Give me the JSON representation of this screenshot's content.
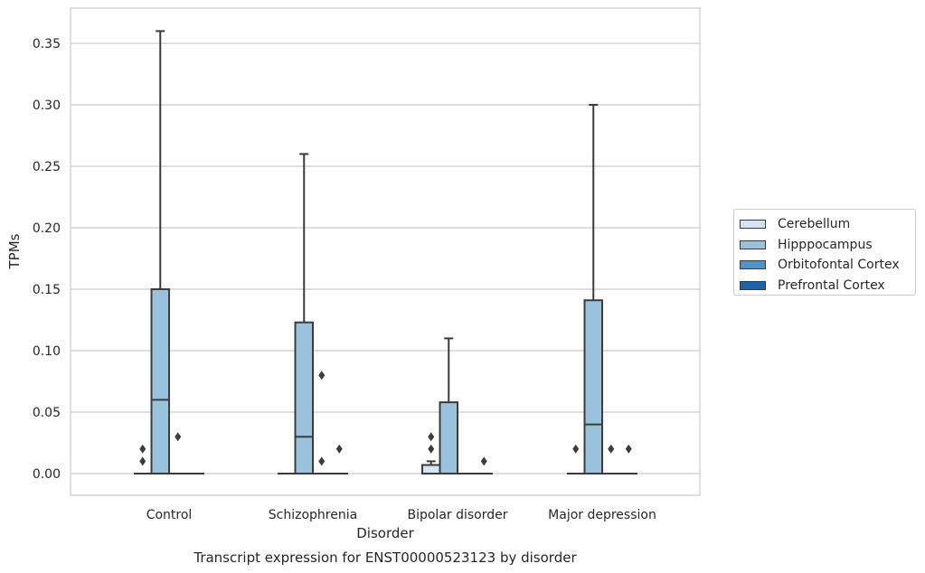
{
  "chart_data": {
    "type": "box",
    "title": "",
    "caption": "Transcript expression for ENST00000523123 by disorder",
    "xlabel": "Disorder",
    "ylabel": "TPMs",
    "ylim": [
      -0.018,
      0.378
    ],
    "yticks": [
      "0.00",
      "0.05",
      "0.10",
      "0.15",
      "0.20",
      "0.25",
      "0.30",
      "0.35"
    ],
    "grid": "horizontal",
    "legend_position": "right",
    "categories": [
      "Control",
      "Schizophrenia",
      "Bipolar disorder",
      "Major depression"
    ],
    "series": [
      {
        "name": "Cerebellum",
        "color": "#d4e4f2",
        "boxes": [
          {
            "q1": 0,
            "median": 0,
            "q3": 0,
            "whisker_low": 0,
            "whisker_high": 0,
            "outliers": [
              0.01,
              0.02
            ]
          },
          {
            "q1": 0,
            "median": 0,
            "q3": 0,
            "whisker_low": 0,
            "whisker_high": 0,
            "outliers": []
          },
          {
            "q1": 0,
            "median": 0,
            "q3": 0.007,
            "whisker_low": 0,
            "whisker_high": 0.01,
            "outliers": [
              0.02,
              0.03
            ]
          },
          {
            "q1": 0,
            "median": 0,
            "q3": 0,
            "whisker_low": 0,
            "whisker_high": 0,
            "outliers": [
              0.02
            ]
          }
        ]
      },
      {
        "name": "Hipppocampus",
        "color": "#9ac2dc",
        "boxes": [
          {
            "q1": 0,
            "median": 0.06,
            "q3": 0.15,
            "whisker_low": 0,
            "whisker_high": 0.36,
            "outliers": []
          },
          {
            "q1": 0,
            "median": 0.03,
            "q3": 0.123,
            "whisker_low": 0,
            "whisker_high": 0.26,
            "outliers": []
          },
          {
            "q1": 0,
            "median": 0,
            "q3": 0.058,
            "whisker_low": 0,
            "whisker_high": 0.11,
            "outliers": []
          },
          {
            "q1": 0,
            "median": 0.04,
            "q3": 0.141,
            "whisker_low": 0,
            "whisker_high": 0.3,
            "outliers": []
          }
        ]
      },
      {
        "name": "Orbitofontal Cortex",
        "color": "#5094c5",
        "boxes": [
          {
            "q1": 0,
            "median": 0,
            "q3": 0,
            "whisker_low": 0,
            "whisker_high": 0,
            "outliers": [
              0.03
            ]
          },
          {
            "q1": 0,
            "median": 0,
            "q3": 0,
            "whisker_low": 0,
            "whisker_high": 0,
            "outliers": [
              0.01,
              0.08
            ]
          },
          {
            "q1": 0,
            "median": 0,
            "q3": 0,
            "whisker_low": 0,
            "whisker_high": 0,
            "outliers": []
          },
          {
            "q1": 0,
            "median": 0,
            "q3": 0,
            "whisker_low": 0,
            "whisker_high": 0,
            "outliers": [
              0.02
            ]
          }
        ]
      },
      {
        "name": "Prefrontal Cortex",
        "color": "#1f63a6",
        "boxes": [
          {
            "q1": 0,
            "median": 0,
            "q3": 0,
            "whisker_low": 0,
            "whisker_high": 0,
            "outliers": []
          },
          {
            "q1": 0,
            "median": 0,
            "q3": 0,
            "whisker_low": 0,
            "whisker_high": 0,
            "outliers": [
              0.02
            ]
          },
          {
            "q1": 0,
            "median": 0,
            "q3": 0,
            "whisker_low": 0,
            "whisker_high": 0,
            "outliers": [
              0.01
            ]
          },
          {
            "q1": 0,
            "median": 0,
            "q3": 0,
            "whisker_low": 0,
            "whisker_high": 0,
            "outliers": [
              0.02
            ]
          }
        ]
      }
    ]
  }
}
